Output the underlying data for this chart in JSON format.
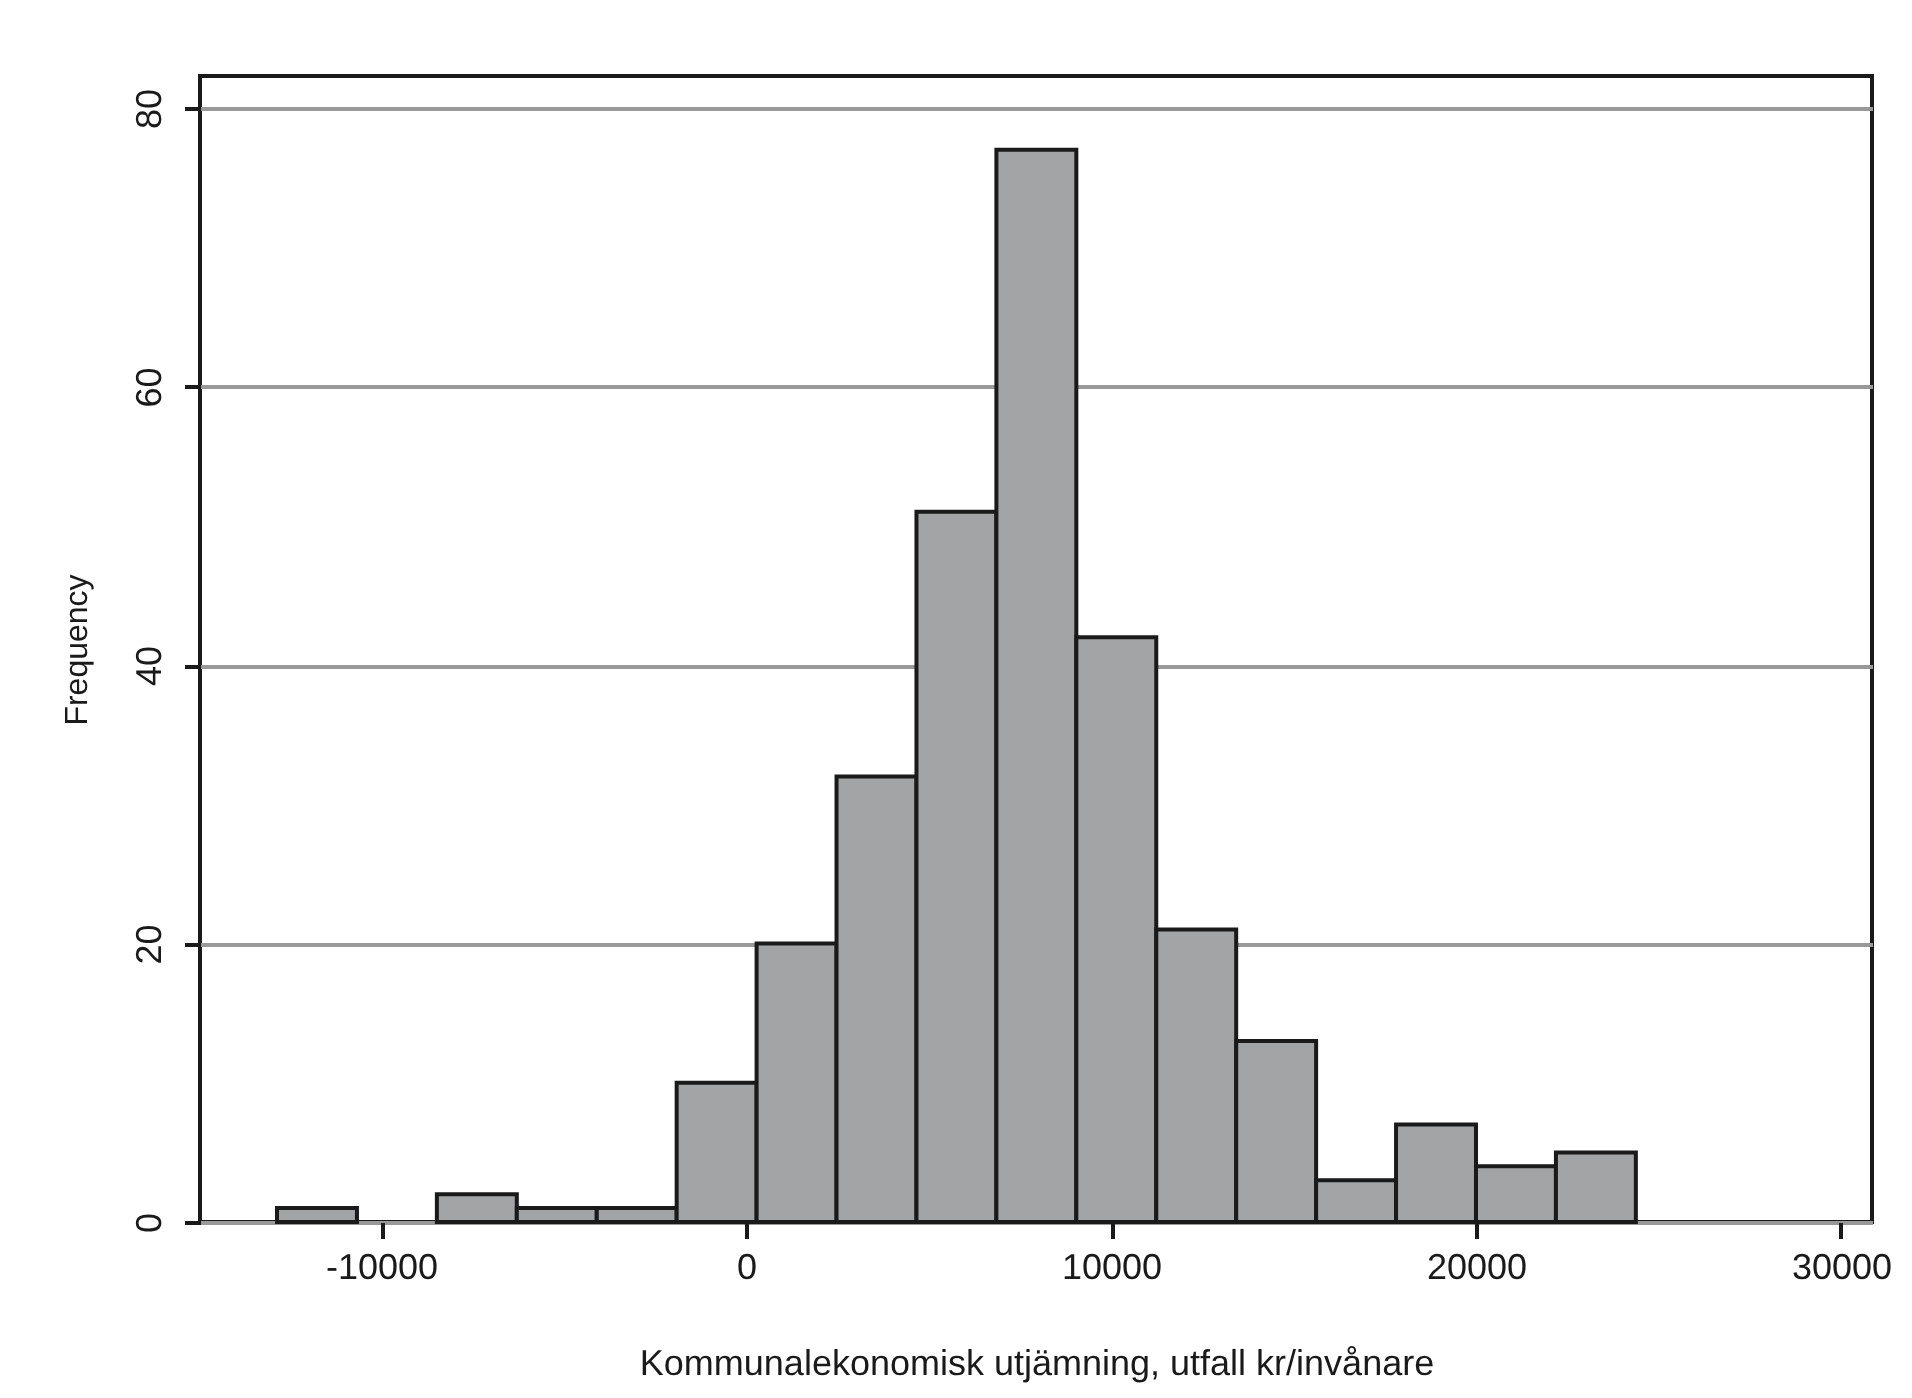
{
  "chart_data": {
    "type": "histogram",
    "xlabel": "Kommunalekonomisk utjämning, utfall kr/invånare",
    "ylabel": "Frequency",
    "bins": [
      -12850,
      -10660,
      -8470,
      -6280,
      -4090,
      -1900,
      290,
      2480,
      4670,
      6860,
      9050,
      11240,
      13430,
      15620,
      17810,
      20000,
      22190,
      24380
    ],
    "values": [
      1,
      0,
      2,
      1,
      1,
      10,
      20,
      32,
      51,
      77,
      42,
      21,
      13,
      3,
      7,
      4,
      5
    ],
    "color": "#a3a4a6",
    "xlim": [
      -14960,
      30850
    ],
    "xticks": [
      -10000,
      0,
      10000,
      20000,
      30000
    ],
    "ylim": [
      0,
      82.3
    ],
    "yticks": [
      0,
      20,
      40,
      60,
      80
    ],
    "grid": "y"
  }
}
